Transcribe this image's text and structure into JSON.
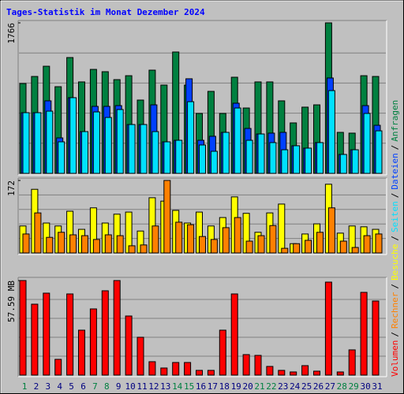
{
  "title": "Tages-Statistik im Monat Dezember 2024",
  "legend_separator": "/",
  "chart_data": [
    {
      "type": "bar",
      "ylim": [
        0,
        1766
      ],
      "yticks": [
        1766
      ],
      "grid": true,
      "series": [
        {
          "name": "Anfragen",
          "color": "#008040",
          "values": [
            1054,
            1137,
            1257,
            1017,
            1359,
            1073,
            1220,
            1193,
            1100,
            1146,
            860,
            1211,
            1036,
            1424,
            1036,
            703,
            962,
            703,
            1128,
            767,
            1073,
            1073,
            851,
            592,
            777,
            804,
            1766,
            481,
            472,
            1146,
            1137
          ]
        },
        {
          "name": "Dateien",
          "color": "#0040ff",
          "values": [
            712,
            712,
            851,
            416,
            888,
            490,
            786,
            786,
            795,
            573,
            573,
            804,
            370,
            388,
            1110,
            388,
            435,
            481,
            823,
            527,
            462,
            472,
            481,
            324,
            296,
            361,
            1119,
            222,
            277,
            795,
            564
          ]
        },
        {
          "name": "Seiten",
          "color": "#00e0ff",
          "values": [
            712,
            712,
            730,
            370,
            888,
            490,
            721,
            656,
            749,
            573,
            573,
            490,
            370,
            388,
            841,
            333,
            259,
            481,
            767,
            388,
            462,
            361,
            277,
            324,
            296,
            361,
            971,
            222,
            277,
            703,
            499
          ]
        }
      ]
    },
    {
      "type": "bar",
      "ylim": [
        0,
        172
      ],
      "yticks": [
        172
      ],
      "grid": true,
      "series": [
        {
          "name": "Besuche",
          "color": "#ffff00",
          "values": [
            64,
            151,
            71,
            64,
            99,
            56,
            107,
            71,
            92,
            97,
            52,
            131,
            123,
            101,
            71,
            97,
            64,
            84,
            133,
            94,
            49,
            95,
            116,
            22,
            45,
            69,
            163,
            47,
            64,
            62,
            56
          ]
        },
        {
          "name": "Rechner",
          "color": "#ff8000",
          "values": [
            45,
            95,
            37,
            49,
            43,
            41,
            32,
            43,
            41,
            17,
            19,
            64,
            172,
            73,
            67,
            39,
            32,
            60,
            84,
            28,
            41,
            65,
            11,
            22,
            30,
            49,
            107,
            28,
            13,
            41,
            45
          ]
        }
      ]
    },
    {
      "type": "bar",
      "ylim": [
        0,
        57.59
      ],
      "yticks": [
        {
          "value": 57.59,
          "label": "57.59 MB"
        }
      ],
      "grid": true,
      "categories": [
        "1",
        "2",
        "3",
        "4",
        "5",
        "6",
        "7",
        "8",
        "9",
        "10",
        "11",
        "12",
        "13",
        "14",
        "15",
        "16",
        "17",
        "18",
        "19",
        "20",
        "21",
        "22",
        "23",
        "24",
        "25",
        "26",
        "27",
        "28",
        "29",
        "30",
        "31"
      ],
      "category_colors": [
        "#008040",
        "#000080",
        "#000080",
        "#000080",
        "#000080",
        "#000080",
        "#008040",
        "#008040",
        "#000080",
        "#000080",
        "#000080",
        "#000080",
        "#000080",
        "#008040",
        "#008040",
        "#000080",
        "#000080",
        "#000080",
        "#000080",
        "#000080",
        "#008040",
        "#008040",
        "#000080",
        "#000080",
        "#000080",
        "#000080",
        "#000080",
        "#008040",
        "#008040",
        "#000080",
        "#000080"
      ],
      "series": [
        {
          "name": "Volumen",
          "color": "#ff0000",
          "values": [
            57.59,
            43.19,
            49.91,
            9.6,
            49.43,
            27.36,
            40.31,
            51.35,
            57.59,
            35.99,
            23.04,
            8.16,
            4.32,
            7.68,
            7.68,
            2.88,
            2.88,
            27.36,
            49.43,
            12.48,
            12.0,
            5.28,
            2.88,
            1.92,
            5.76,
            2.4,
            56.63,
            1.92,
            15.36,
            50.39,
            45.11
          ]
        }
      ]
    }
  ]
}
